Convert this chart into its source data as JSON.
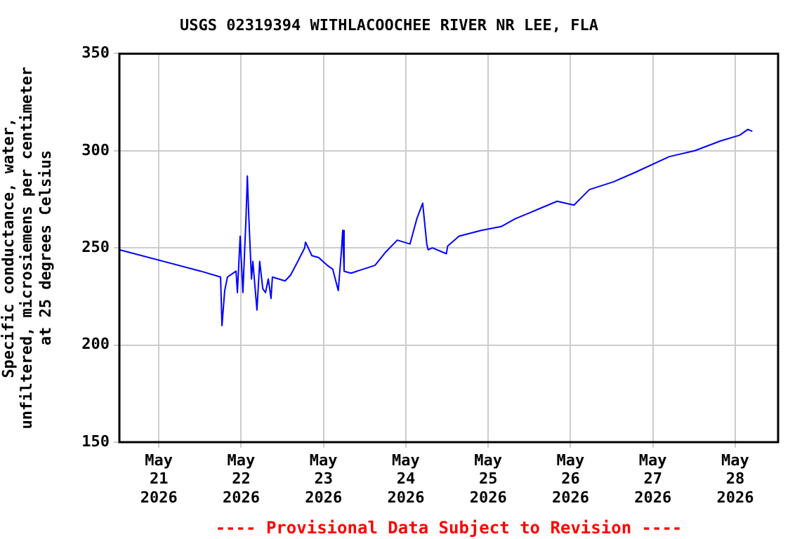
{
  "chart_data": {
    "type": "line",
    "title": "USGS 02319394 WITHLACOOCHEE RIVER NR LEE, FLA",
    "ylabel": "Specific conductance, water,\nunfiltered, microsiemens per centimeter\nat 25 degrees Celsius",
    "annotations": [
      "---- Provisional Data Subject to Revision ----"
    ],
    "x": [
      "2026-05-20T12:36",
      "2026-05-21T12:15",
      "2026-05-21T18:00",
      "2026-05-21T18:24",
      "2026-05-21T19:12",
      "2026-05-21T20:00",
      "2026-05-21T22:30",
      "2026-05-21T22:54",
      "2026-05-21T23:42",
      "2026-05-22T00:30",
      "2026-05-22T01:24",
      "2026-05-22T01:48",
      "2026-05-22T02:12",
      "2026-05-22T03:00",
      "2026-05-22T03:24",
      "2026-05-22T04:36",
      "2026-05-22T05:24",
      "2026-05-22T06:18",
      "2026-05-22T07:06",
      "2026-05-22T07:54",
      "2026-05-22T08:42",
      "2026-05-22T09:06",
      "2026-05-22T12:48",
      "2026-05-22T14:24",
      "2026-05-22T16:30",
      "2026-05-22T18:30",
      "2026-05-22T18:45",
      "2026-05-22T20:36",
      "2026-05-22T22:36",
      "2026-05-23T01:06",
      "2026-05-23T02:42",
      "2026-05-23T04:18",
      "2026-05-23T05:12",
      "2026-05-23T05:36",
      "2026-05-23T06:00",
      "2026-05-23T08:00",
      "2026-05-23T15:00",
      "2026-05-23T18:12",
      "2026-05-23T21:30",
      "2026-05-24T01:12",
      "2026-05-24T03:12",
      "2026-05-24T04:54",
      "2026-05-24T06:06",
      "2026-05-24T06:30",
      "2026-05-24T07:42",
      "2026-05-24T11:48",
      "2026-05-24T12:12",
      "2026-05-24T15:30",
      "2026-05-24T22:00",
      "2026-05-25T03:48",
      "2026-05-25T07:54",
      "2026-05-25T12:00",
      "2026-05-25T20:06",
      "2026-05-26T01:00",
      "2026-05-26T05:30",
      "2026-05-26T12:30",
      "2026-05-26T19:00",
      "2026-05-27T04:48",
      "2026-05-27T12:12",
      "2026-05-27T19:36",
      "2026-05-28T01:18",
      "2026-05-28T03:42",
      "2026-05-28T05:00"
    ],
    "series": [
      {
        "color": "#0000ff",
        "values": [
          249,
          238,
          235,
          210,
          228,
          235,
          238,
          227,
          256,
          227,
          265,
          287,
          267,
          234,
          243,
          218,
          243,
          229,
          227,
          234,
          224,
          235,
          233,
          236,
          243,
          250,
          253,
          246,
          245,
          241,
          239,
          228,
          248,
          259,
          238,
          237,
          241,
          248,
          254,
          252,
          265,
          273,
          252,
          249,
          250,
          247,
          251,
          256,
          259,
          261,
          265,
          268,
          274,
          272,
          280,
          284,
          289,
          297,
          300,
          305,
          308,
          311,
          310
        ]
      }
    ],
    "xlim": [
      "2026-05-20T12:30",
      "2026-05-28T12:30"
    ],
    "xticks": [
      {
        "value": "2026-05-21",
        "label": "May\n21\n2026"
      },
      {
        "value": "2026-05-22",
        "label": "May\n22\n2026"
      },
      {
        "value": "2026-05-23",
        "label": "May\n23\n2026"
      },
      {
        "value": "2026-05-24",
        "label": "May\n24\n2026"
      },
      {
        "value": "2026-05-25",
        "label": "May\n25\n2026"
      },
      {
        "value": "2026-05-26",
        "label": "May\n26\n2026"
      },
      {
        "value": "2026-05-27",
        "label": "May\n27\n2026"
      },
      {
        "value": "2026-05-28",
        "label": "May\n28\n2026"
      }
    ],
    "ylim": [
      150,
      350
    ],
    "yticks": [
      150,
      200,
      250,
      300,
      350
    ],
    "grid": true,
    "legend": false,
    "marker": "none",
    "line_style": "solid"
  }
}
